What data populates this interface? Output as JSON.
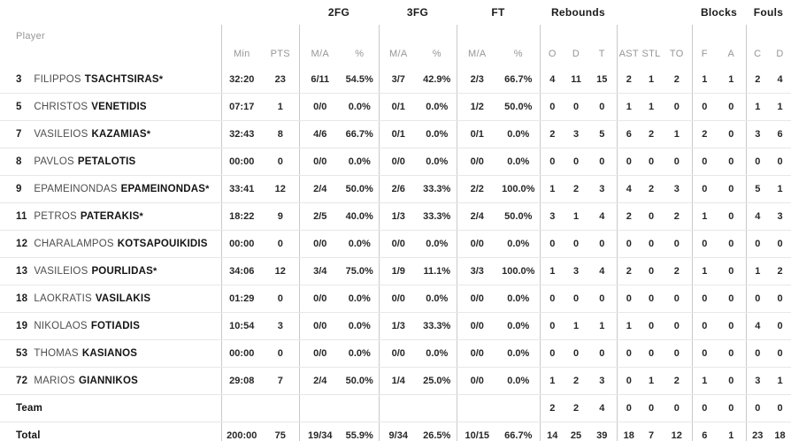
{
  "table": {
    "player_col_label": "Player",
    "starter_mark": "*",
    "groups": {
      "fg2": "2FG",
      "fg3": "3FG",
      "ft": "FT",
      "rebounds": "Rebounds",
      "blocks": "Blocks",
      "fouls": "Fouls"
    },
    "sub_headers": {
      "min": "Min",
      "pts": "PTS",
      "ma": "M/A",
      "pct": "%",
      "o": "O",
      "d": "D",
      "t": "T",
      "ast": "AST",
      "stl": "STL",
      "to": "TO",
      "f": "F",
      "a": "A",
      "c": "C"
    },
    "colors": {
      "text_dark": "#1b1b1b",
      "text_gray": "#969696",
      "divider_vertical": "#c9c9c9",
      "divider_horizontal": "#e7e7e7"
    },
    "rows": [
      {
        "num": "3",
        "first": "FILIPPOS",
        "last": "TSACHTSIRAS",
        "starter": true,
        "min": "32:20",
        "pts": "23",
        "fg2_ma": "6/11",
        "fg2_pct": "54.5%",
        "fg3_ma": "3/7",
        "fg3_pct": "42.9%",
        "ft_ma": "2/3",
        "ft_pct": "66.7%",
        "reb_o": "4",
        "reb_d": "11",
        "reb_t": "15",
        "ast": "2",
        "stl": "1",
        "to": "2",
        "blk_f": "1",
        "blk_a": "1",
        "foul_c": "2",
        "foul_d": "4"
      },
      {
        "num": "5",
        "first": "CHRISTOS",
        "last": "VENETIDIS",
        "starter": false,
        "min": "07:17",
        "pts": "1",
        "fg2_ma": "0/0",
        "fg2_pct": "0.0%",
        "fg3_ma": "0/1",
        "fg3_pct": "0.0%",
        "ft_ma": "1/2",
        "ft_pct": "50.0%",
        "reb_o": "0",
        "reb_d": "0",
        "reb_t": "0",
        "ast": "1",
        "stl": "1",
        "to": "0",
        "blk_f": "0",
        "blk_a": "0",
        "foul_c": "1",
        "foul_d": "1"
      },
      {
        "num": "7",
        "first": "VASILEIOS",
        "last": "KAZAMIAS",
        "starter": true,
        "min": "32:43",
        "pts": "8",
        "fg2_ma": "4/6",
        "fg2_pct": "66.7%",
        "fg3_ma": "0/1",
        "fg3_pct": "0.0%",
        "ft_ma": "0/1",
        "ft_pct": "0.0%",
        "reb_o": "2",
        "reb_d": "3",
        "reb_t": "5",
        "ast": "6",
        "stl": "2",
        "to": "1",
        "blk_f": "2",
        "blk_a": "0",
        "foul_c": "3",
        "foul_d": "6"
      },
      {
        "num": "8",
        "first": "PAVLOS",
        "last": "PETALOTIS",
        "starter": false,
        "min": "00:00",
        "pts": "0",
        "fg2_ma": "0/0",
        "fg2_pct": "0.0%",
        "fg3_ma": "0/0",
        "fg3_pct": "0.0%",
        "ft_ma": "0/0",
        "ft_pct": "0.0%",
        "reb_o": "0",
        "reb_d": "0",
        "reb_t": "0",
        "ast": "0",
        "stl": "0",
        "to": "0",
        "blk_f": "0",
        "blk_a": "0",
        "foul_c": "0",
        "foul_d": "0"
      },
      {
        "num": "9",
        "first": "EPAMEINONDAS",
        "last": "EPAMEINONDAS",
        "starter": true,
        "min": "33:41",
        "pts": "12",
        "fg2_ma": "2/4",
        "fg2_pct": "50.0%",
        "fg3_ma": "2/6",
        "fg3_pct": "33.3%",
        "ft_ma": "2/2",
        "ft_pct": "100.0%",
        "reb_o": "1",
        "reb_d": "2",
        "reb_t": "3",
        "ast": "4",
        "stl": "2",
        "to": "3",
        "blk_f": "0",
        "blk_a": "0",
        "foul_c": "5",
        "foul_d": "1"
      },
      {
        "num": "11",
        "first": "PETROS",
        "last": "PATERAKIS",
        "starter": true,
        "min": "18:22",
        "pts": "9",
        "fg2_ma": "2/5",
        "fg2_pct": "40.0%",
        "fg3_ma": "1/3",
        "fg3_pct": "33.3%",
        "ft_ma": "2/4",
        "ft_pct": "50.0%",
        "reb_o": "3",
        "reb_d": "1",
        "reb_t": "4",
        "ast": "2",
        "stl": "0",
        "to": "2",
        "blk_f": "1",
        "blk_a": "0",
        "foul_c": "4",
        "foul_d": "3"
      },
      {
        "num": "12",
        "first": "CHARALAMPOS",
        "last": "KOTSAPOUIKIDIS",
        "starter": false,
        "min": "00:00",
        "pts": "0",
        "fg2_ma": "0/0",
        "fg2_pct": "0.0%",
        "fg3_ma": "0/0",
        "fg3_pct": "0.0%",
        "ft_ma": "0/0",
        "ft_pct": "0.0%",
        "reb_o": "0",
        "reb_d": "0",
        "reb_t": "0",
        "ast": "0",
        "stl": "0",
        "to": "0",
        "blk_f": "0",
        "blk_a": "0",
        "foul_c": "0",
        "foul_d": "0"
      },
      {
        "num": "13",
        "first": "VASILEIOS",
        "last": "POURLIDAS",
        "starter": true,
        "min": "34:06",
        "pts": "12",
        "fg2_ma": "3/4",
        "fg2_pct": "75.0%",
        "fg3_ma": "1/9",
        "fg3_pct": "11.1%",
        "ft_ma": "3/3",
        "ft_pct": "100.0%",
        "reb_o": "1",
        "reb_d": "3",
        "reb_t": "4",
        "ast": "2",
        "stl": "0",
        "to": "2",
        "blk_f": "1",
        "blk_a": "0",
        "foul_c": "1",
        "foul_d": "2"
      },
      {
        "num": "18",
        "first": "LAOKRATIS",
        "last": "VASILAKIS",
        "starter": false,
        "min": "01:29",
        "pts": "0",
        "fg2_ma": "0/0",
        "fg2_pct": "0.0%",
        "fg3_ma": "0/0",
        "fg3_pct": "0.0%",
        "ft_ma": "0/0",
        "ft_pct": "0.0%",
        "reb_o": "0",
        "reb_d": "0",
        "reb_t": "0",
        "ast": "0",
        "stl": "0",
        "to": "0",
        "blk_f": "0",
        "blk_a": "0",
        "foul_c": "0",
        "foul_d": "0"
      },
      {
        "num": "19",
        "first": "NIKOLAOS",
        "last": "FOTIADIS",
        "starter": false,
        "min": "10:54",
        "pts": "3",
        "fg2_ma": "0/0",
        "fg2_pct": "0.0%",
        "fg3_ma": "1/3",
        "fg3_pct": "33.3%",
        "ft_ma": "0/0",
        "ft_pct": "0.0%",
        "reb_o": "0",
        "reb_d": "1",
        "reb_t": "1",
        "ast": "1",
        "stl": "0",
        "to": "0",
        "blk_f": "0",
        "blk_a": "0",
        "foul_c": "4",
        "foul_d": "0"
      },
      {
        "num": "53",
        "first": "THOMAS",
        "last": "KASIANOS",
        "starter": false,
        "min": "00:00",
        "pts": "0",
        "fg2_ma": "0/0",
        "fg2_pct": "0.0%",
        "fg3_ma": "0/0",
        "fg3_pct": "0.0%",
        "ft_ma": "0/0",
        "ft_pct": "0.0%",
        "reb_o": "0",
        "reb_d": "0",
        "reb_t": "0",
        "ast": "0",
        "stl": "0",
        "to": "0",
        "blk_f": "0",
        "blk_a": "0",
        "foul_c": "0",
        "foul_d": "0"
      },
      {
        "num": "72",
        "first": "MARIOS",
        "last": "GIANNIKOS",
        "starter": false,
        "min": "29:08",
        "pts": "7",
        "fg2_ma": "2/4",
        "fg2_pct": "50.0%",
        "fg3_ma": "1/4",
        "fg3_pct": "25.0%",
        "ft_ma": "0/0",
        "ft_pct": "0.0%",
        "reb_o": "1",
        "reb_d": "2",
        "reb_t": "3",
        "ast": "0",
        "stl": "1",
        "to": "2",
        "blk_f": "1",
        "blk_a": "0",
        "foul_c": "3",
        "foul_d": "1"
      },
      {
        "label": "Team",
        "reb_o": "2",
        "reb_d": "2",
        "reb_t": "4",
        "ast": "0",
        "stl": "0",
        "to": "0",
        "blk_f": "0",
        "blk_a": "0",
        "foul_c": "0",
        "foul_d": "0"
      },
      {
        "label": "Total",
        "min": "200:00",
        "pts": "75",
        "fg2_ma": "19/34",
        "fg2_pct": "55.9%",
        "fg3_ma": "9/34",
        "fg3_pct": "26.5%",
        "ft_ma": "10/15",
        "ft_pct": "66.7%",
        "reb_o": "14",
        "reb_d": "25",
        "reb_t": "39",
        "ast": "18",
        "stl": "7",
        "to": "12",
        "blk_f": "6",
        "blk_a": "1",
        "foul_c": "23",
        "foul_d": "18"
      }
    ]
  }
}
